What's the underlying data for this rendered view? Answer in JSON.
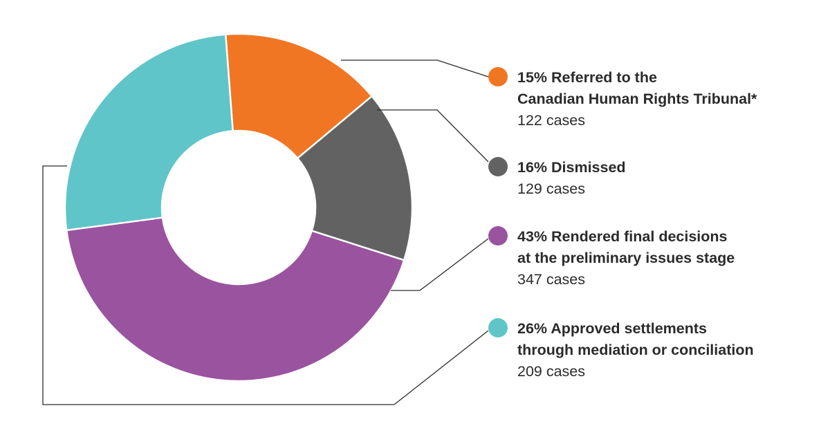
{
  "chart_data": {
    "type": "pie",
    "donut": true,
    "categories": [
      "Referred to the Canadian Human Rights Tribunal*",
      "Dismissed",
      "Rendered final decisions at the preliminary issues stage",
      "Approved settlements through mediation or conciliation"
    ],
    "values": [
      122,
      129,
      347,
      209
    ],
    "percentages": [
      15,
      16,
      43,
      26
    ],
    "colors": [
      "#f07623",
      "#626262",
      "#9a539f",
      "#5fc5c9"
    ],
    "legend_position": "right"
  },
  "legend": [
    {
      "line1": "15% Referred to the",
      "line2": "Canadian Human Rights Tribunal*",
      "cases": "122 cases",
      "color": "#f07623"
    },
    {
      "line1": "16% Dismissed",
      "line2": "",
      "cases": "129 cases",
      "color": "#626262"
    },
    {
      "line1": "43% Rendered final decisions",
      "line2": "at the preliminary issues stage",
      "cases": "347 cases",
      "color": "#9a539f"
    },
    {
      "line1": "26% Approved settlements",
      "line2": "through mediation or conciliation",
      "cases": "209 cases",
      "color": "#5fc5c9"
    }
  ]
}
